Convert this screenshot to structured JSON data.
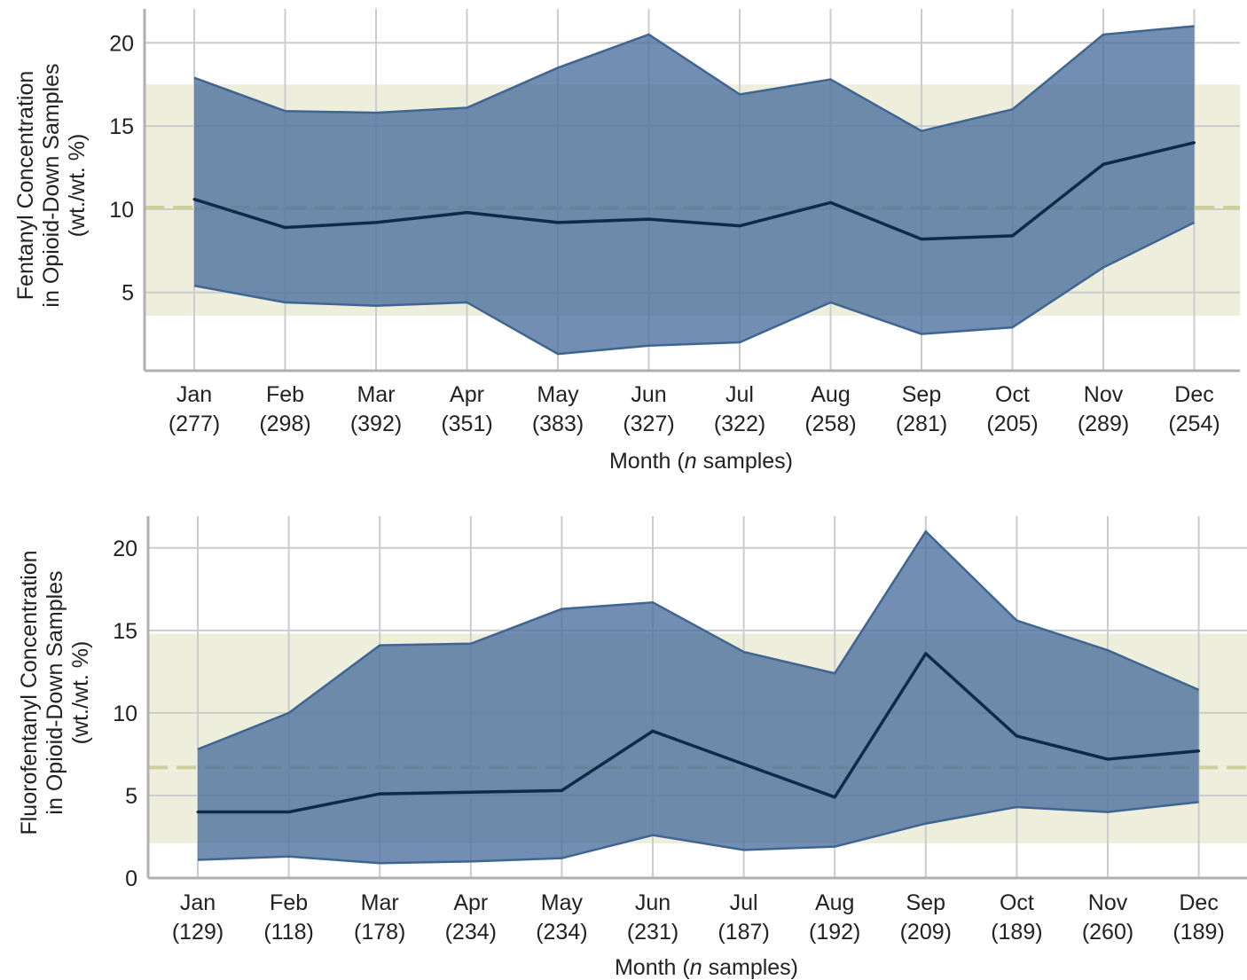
{
  "chart_data": [
    {
      "type": "area",
      "xlabel_prefix": "Month (",
      "xlabel_italic": "n",
      "xlabel_suffix": " samples)",
      "ylabel_lines": [
        "Fentanyl Concentration",
        "in Opioid-Down Samples",
        "(wt./wt. %)"
      ],
      "categories": [
        "Jan",
        "Feb",
        "Mar",
        "Apr",
        "May",
        "Jun",
        "Jul",
        "Aug",
        "Sep",
        "Oct",
        "Nov",
        "Dec"
      ],
      "sample_counts": [
        "(277)",
        "(298)",
        "(392)",
        "(351)",
        "(383)",
        "(327)",
        "(322)",
        "(258)",
        "(281)",
        "(205)",
        "(289)",
        "(254)"
      ],
      "y_ticks": [
        "5",
        "10",
        "15",
        "20"
      ],
      "y_tick_values": [
        5,
        10,
        15,
        20
      ],
      "ylim": [
        0,
        22
      ],
      "series": {
        "median": [
          10.6,
          8.9,
          9.2,
          9.8,
          9.2,
          9.4,
          9.0,
          10.4,
          8.2,
          8.4,
          12.7,
          14.0
        ],
        "lower": [
          5.4,
          4.4,
          4.2,
          4.4,
          1.3,
          1.8,
          2.0,
          4.4,
          2.5,
          2.9,
          6.5,
          9.2
        ],
        "upper": [
          17.9,
          15.9,
          15.8,
          16.1,
          18.5,
          20.5,
          16.9,
          17.8,
          14.7,
          16.0,
          20.5,
          21.0
        ]
      },
      "overall_mean": 10.1,
      "overall_band": [
        3.6,
        17.5
      ],
      "grid": true
    },
    {
      "type": "area",
      "xlabel_prefix": "Month (",
      "xlabel_italic": "n",
      "xlabel_suffix": " samples)",
      "ylabel_lines": [
        "Fluorofentanyl Concentration",
        "in Opioid-Down Samples",
        "(wt./wt. %)"
      ],
      "categories": [
        "Jan",
        "Feb",
        "Mar",
        "Apr",
        "May",
        "Jun",
        "Jul",
        "Aug",
        "Sep",
        "Oct",
        "Nov",
        "Dec"
      ],
      "sample_counts": [
        "(129)",
        "(118)",
        "(178)",
        "(234)",
        "(234)",
        "(231)",
        "(187)",
        "(192)",
        "(209)",
        "(189)",
        "(260)",
        "(189)"
      ],
      "y_ticks": [
        "0",
        "5",
        "10",
        "15",
        "20"
      ],
      "y_tick_values": [
        0,
        5,
        10,
        15,
        20
      ],
      "ylim": [
        0,
        22
      ],
      "series": {
        "median": [
          4.0,
          4.0,
          5.1,
          5.2,
          5.3,
          8.9,
          6.9,
          4.9,
          13.6,
          8.6,
          7.2,
          7.7
        ],
        "lower": [
          1.1,
          1.3,
          0.9,
          1.0,
          1.2,
          2.6,
          1.7,
          1.9,
          3.3,
          4.3,
          4.0,
          4.6
        ],
        "upper": [
          7.8,
          10.0,
          14.1,
          14.2,
          16.3,
          16.7,
          13.7,
          12.4,
          21.0,
          15.6,
          13.8,
          11.4
        ]
      },
      "overall_mean": 6.7,
      "overall_band": [
        2.1,
        14.8
      ],
      "grid": true
    }
  ],
  "colors": {
    "band_fill": "#4a6e9c",
    "band_edge": "#3f6592",
    "median_line": "#0f2a4a",
    "mean_band": "#eeeedc",
    "mean_line": "#cfcf9a",
    "grid": "#cccccc",
    "axis": "#b0b0b0"
  }
}
